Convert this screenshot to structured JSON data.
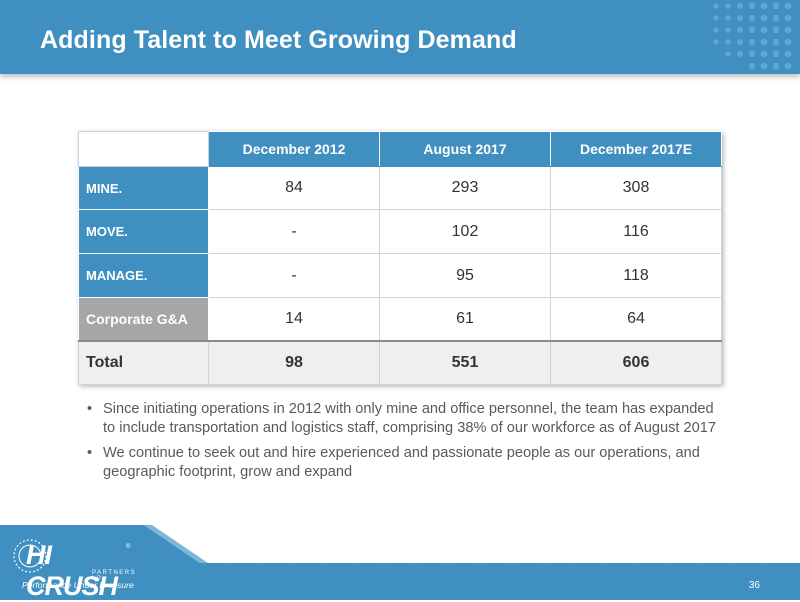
{
  "slide": {
    "title": "Adding Talent to Meet Growing Demand",
    "page_number": "36"
  },
  "table": {
    "columns": [
      "December 2012",
      "August 2017",
      "December 2017E"
    ],
    "rows": [
      {
        "label": "MINE.",
        "values": [
          "84",
          "293",
          "308"
        ]
      },
      {
        "label": "MOVE.",
        "values": [
          "-",
          "102",
          "116"
        ]
      },
      {
        "label": "MANAGE.",
        "values": [
          "-",
          "95",
          "118"
        ]
      },
      {
        "label": "Corporate G&A",
        "values": [
          "14",
          "61",
          "64"
        ]
      }
    ],
    "total": {
      "label": "Total",
      "values": [
        "98",
        "551",
        "606"
      ]
    }
  },
  "bullets": [
    "Since initiating operations in 2012 with only mine and office personnel, the team has expanded to include transportation and logistics staff, comprising 38% of our workforce as of August 2017",
    "We continue to seek out and hire experienced and passionate people as our operations, and geographic footprint, grow and expand"
  ],
  "logo": {
    "name": "HI CRUSH",
    "subtitle": "PARTNERS LP",
    "tagline": "Performance Under Pressure",
    "trademark": "®"
  },
  "colors": {
    "brand_blue": "#3f8fc0",
    "row_gray": "#a6a6a6",
    "text_gray": "#595959"
  }
}
